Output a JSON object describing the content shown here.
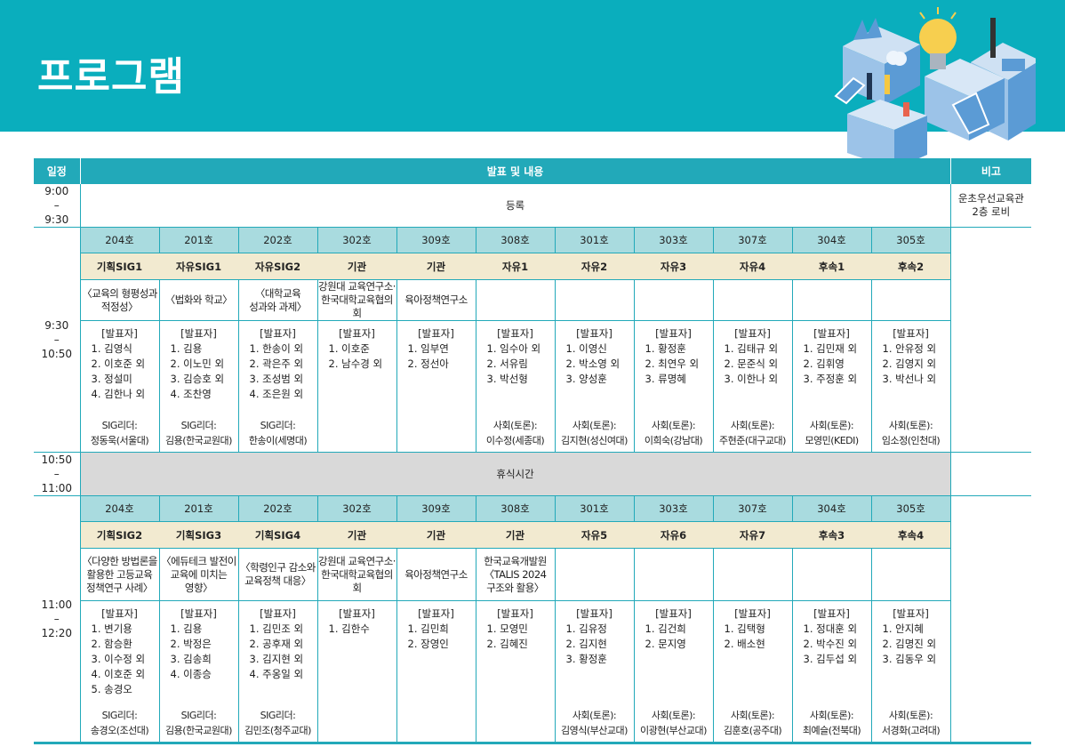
{
  "header": {
    "title": "프로그램",
    "colors": {
      "banner": "#0aaebd",
      "table_header": "#22a9b9",
      "room_row": "#a9dbdf",
      "category_row": "#f2ead0",
      "break_row": "#d9d9d9"
    }
  },
  "table": {
    "columns": {
      "time": "일정",
      "content": "발표 및 내용",
      "note": "비고"
    },
    "registration": {
      "time": "9:00\n–\n9:30",
      "label": "등록",
      "note": "운초우선교육관\n2층 로비"
    },
    "break": {
      "time": "10:50\n–\n11:00",
      "label": "휴식시간"
    },
    "presenter_heading": "[발표자]",
    "blocks": [
      {
        "time": "9:30\n–\n10:50",
        "sessions": [
          {
            "room": "204호",
            "category": "기획SIG1",
            "topic": "〈교육의 형평성과\n적정성〉",
            "presenters": [
              "1. 김영식",
              "2. 이호준 외",
              "3. 정설미",
              "4. 김한나 외"
            ],
            "role": "SIG리더:",
            "person": "정동욱(서울대)"
          },
          {
            "room": "201호",
            "category": "자유SIG1",
            "topic": "〈법화와 학교〉",
            "presenters": [
              "1. 김용",
              "2. 이노민 외",
              "3. 김승호 외",
              "4. 조찬영"
            ],
            "role": "SIG리더:",
            "person": "김용(한국교원대)"
          },
          {
            "room": "202호",
            "category": "자유SIG2",
            "topic": "〈대학교육\n성과와 과제〉",
            "presenters": [
              "1. 한송이 외",
              "2. 곽은주 외",
              "3. 조성범 외",
              "4. 조은원 외"
            ],
            "role": "SIG리더:",
            "person": "한송이(세명대)"
          },
          {
            "room": "302호",
            "category": "기관",
            "topic": "강원대 교육연구소·\n한국대학교육협의회",
            "presenters": [
              "1. 이호준",
              "2. 남수경 외"
            ],
            "role": "",
            "person": ""
          },
          {
            "room": "309호",
            "category": "기관",
            "topic": "육아정책연구소",
            "presenters": [
              "1. 임부연",
              "2. 정선아"
            ],
            "role": "",
            "person": ""
          },
          {
            "room": "308호",
            "category": "자유1",
            "topic": "",
            "presenters": [
              "1. 임수아 외",
              "2. 서유림",
              "3. 박선형"
            ],
            "role": "사회(토론):",
            "person": "이수정(세종대)"
          },
          {
            "room": "301호",
            "category": "자유2",
            "topic": "",
            "presenters": [
              "1. 이영신",
              "2. 박소영 외",
              "3. 양성훈"
            ],
            "role": "사회(토론):",
            "person": "김지현(성신여대)"
          },
          {
            "room": "303호",
            "category": "자유3",
            "topic": "",
            "presenters": [
              "1. 황정훈",
              "2. 최연우 외",
              "3. 류명혜"
            ],
            "role": "사회(토론):",
            "person": "이희숙(강남대)"
          },
          {
            "room": "307호",
            "category": "자유4",
            "topic": "",
            "presenters": [
              "1. 김태규 외",
              "2. 문준식 외",
              "3. 이한나 외"
            ],
            "role": "사회(토론):",
            "person": "주현준(대구교대)"
          },
          {
            "room": "304호",
            "category": "후속1",
            "topic": "",
            "presenters": [
              "1. 김민재 외",
              "2. 김휘영",
              "3. 주정훈 외"
            ],
            "role": "사회(토론):",
            "person": "모영민(KEDI)"
          },
          {
            "room": "305호",
            "category": "후속2",
            "topic": "",
            "presenters": [
              "1. 안유정 외",
              "2. 김영지 외",
              "3. 박선나 외"
            ],
            "role": "사회(토론):",
            "person": "임소정(인천대)"
          }
        ]
      },
      {
        "time": "11:00\n–\n12:20",
        "sessions": [
          {
            "room": "204호",
            "category": "기획SIG2",
            "topic": "〈다양한 방법론을\n활용한 고등교육\n정책연구 사례〉",
            "presenters": [
              "1. 변기용",
              "2. 함승환",
              "3. 이수정 외",
              "4. 이호준 외",
              "5. 송경오"
            ],
            "role": "SIG리더:",
            "person": "송경오(조선대)"
          },
          {
            "room": "201호",
            "category": "기획SIG3",
            "topic": "〈에듀테크 발전이\n교육에 미치는\n영향〉",
            "presenters": [
              "1. 김용",
              "2. 박정은",
              "3. 김송희",
              "4. 이종승"
            ],
            "role": "SIG리더:",
            "person": "김용(한국교원대)"
          },
          {
            "room": "202호",
            "category": "기획SIG4",
            "topic": "〈학령인구 감소와\n교육정책 대응〉",
            "presenters": [
              "1. 김민조 외",
              "2. 공후재 외",
              "3. 김지현 외",
              "4. 주옹일 외"
            ],
            "role": "SIG리더:",
            "person": "김민조(청주교대)"
          },
          {
            "room": "302호",
            "category": "기관",
            "topic": "강원대 교육연구소·\n한국대학교육협의회",
            "presenters": [
              "1. 김한수"
            ],
            "role": "",
            "person": ""
          },
          {
            "room": "309호",
            "category": "기관",
            "topic": "육아정책연구소",
            "presenters": [
              "1. 김민희",
              "2. 장영인"
            ],
            "role": "",
            "person": ""
          },
          {
            "room": "308호",
            "category": "기관",
            "topic": "한국교육개발원\n〈TALIS 2024\n구조와 활용〉",
            "presenters": [
              "1. 모영민",
              "2. 김혜진"
            ],
            "role": "",
            "person": ""
          },
          {
            "room": "301호",
            "category": "자유5",
            "topic": "",
            "presenters": [
              "1. 김유정",
              "2. 김지현",
              "3. 황정훈"
            ],
            "role": "사회(토론):",
            "person": "김영식(부산교대)"
          },
          {
            "room": "303호",
            "category": "자유6",
            "topic": "",
            "presenters": [
              "1. 김건희",
              "2. 문지영"
            ],
            "role": "사회(토론):",
            "person": "이광현(부산교대)"
          },
          {
            "room": "307호",
            "category": "자유7",
            "topic": "",
            "presenters": [
              "1. 김택형",
              "2. 배소현"
            ],
            "role": "사회(토론):",
            "person": "김훈호(공주대)"
          },
          {
            "room": "304호",
            "category": "후속3",
            "topic": "",
            "presenters": [
              "1. 정대훈 외",
              "2. 박수진 외",
              "3. 김두섭 외"
            ],
            "role": "사회(토론):",
            "person": "최예슬(전북대)"
          },
          {
            "room": "305호",
            "category": "후속4",
            "topic": "",
            "presenters": [
              "1. 안지혜",
              "2. 김명진 외",
              "3. 김동우 외"
            ],
            "role": "사회(토론):",
            "person": "서경화(고려대)"
          }
        ]
      }
    ]
  }
}
